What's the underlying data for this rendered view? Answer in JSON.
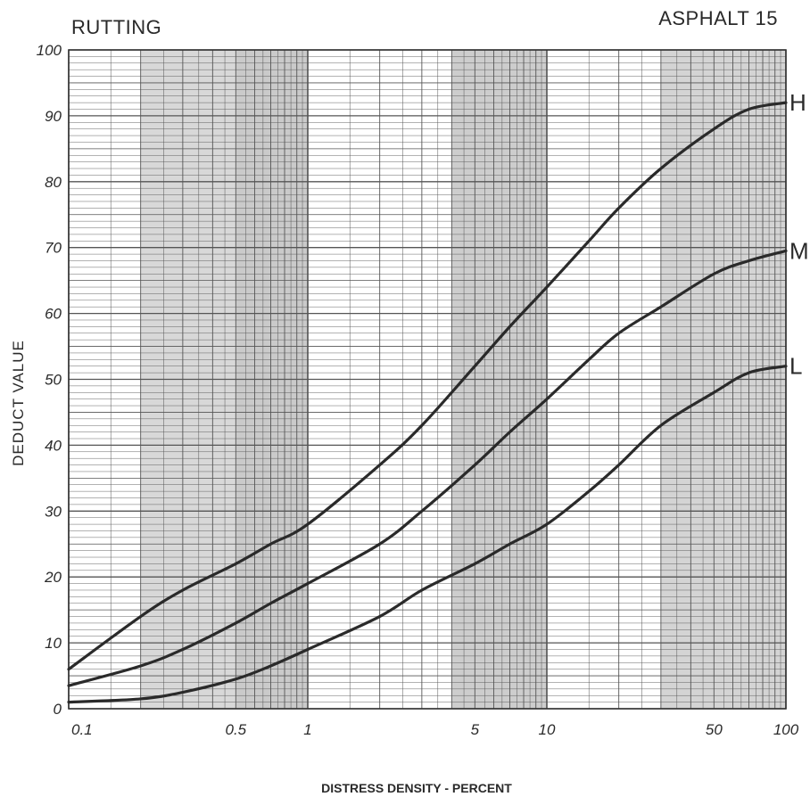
{
  "chart_data": {
    "type": "line",
    "title": "RUTTING",
    "subtitle": "ASPHALT 15",
    "xlabel": "DISTRESS DENSITY - PERCENT",
    "ylabel": "DEDUCT VALUE",
    "xscale": "log",
    "xlim": [
      0.1,
      100
    ],
    "ylim": [
      0,
      100
    ],
    "grid": true,
    "x_ticks": [
      {
        "value": 0.1,
        "label": "0.1"
      },
      {
        "value": 0.5,
        "label": "0.5"
      },
      {
        "value": 1,
        "label": "1"
      },
      {
        "value": 5,
        "label": "5"
      },
      {
        "value": 10,
        "label": "10"
      },
      {
        "value": 50,
        "label": "50"
      },
      {
        "value": 100,
        "label": "100"
      }
    ],
    "y_ticks": [
      {
        "value": 0,
        "label": "0"
      },
      {
        "value": 10,
        "label": "10"
      },
      {
        "value": 20,
        "label": "20"
      },
      {
        "value": 30,
        "label": "30"
      },
      {
        "value": 40,
        "label": "40"
      },
      {
        "value": 50,
        "label": "50"
      },
      {
        "value": 60,
        "label": "60"
      },
      {
        "value": 70,
        "label": "70"
      },
      {
        "value": 80,
        "label": "80"
      },
      {
        "value": 90,
        "label": "90"
      },
      {
        "value": 100,
        "label": "100"
      }
    ],
    "series": [
      {
        "name": "H",
        "x": [
          0.1,
          0.2,
          0.3,
          0.5,
          0.7,
          1,
          2,
          3,
          5,
          7,
          10,
          15,
          20,
          30,
          50,
          70,
          100
        ],
        "y": [
          6,
          14,
          18,
          22,
          25,
          28,
          37,
          43,
          52,
          58,
          64,
          71,
          76,
          82,
          88,
          91,
          92
        ]
      },
      {
        "name": "M",
        "x": [
          0.1,
          0.2,
          0.3,
          0.5,
          0.7,
          1,
          2,
          3,
          5,
          7,
          10,
          15,
          20,
          30,
          50,
          70,
          100
        ],
        "y": [
          3.5,
          6.5,
          9,
          13,
          16,
          19,
          25,
          30,
          37,
          42,
          47,
          53,
          57,
          61,
          66,
          68,
          69.5
        ]
      },
      {
        "name": "L",
        "x": [
          0.1,
          0.2,
          0.3,
          0.5,
          0.7,
          1,
          2,
          3,
          5,
          7,
          10,
          15,
          20,
          30,
          50,
          70,
          100
        ],
        "y": [
          1,
          1.5,
          2.5,
          4.5,
          6.5,
          9,
          14,
          18,
          22,
          25,
          28,
          33,
          37,
          43,
          48,
          51,
          52
        ]
      }
    ]
  },
  "colors": {
    "curve": "#2a2a2a",
    "grid": "#555555",
    "shade": "#b8b8b8"
  }
}
